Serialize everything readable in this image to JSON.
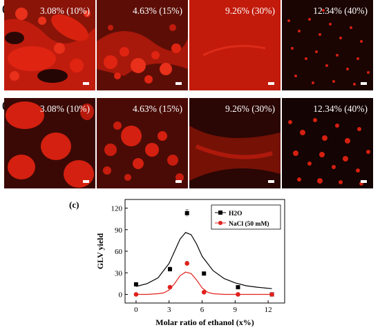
{
  "rows": [
    {
      "label": "(a)",
      "panels": [
        "3.08% (10%)",
        "4.63% (15%)",
        "9.26% (30%)",
        "12.34%  (40%)"
      ]
    },
    {
      "label": "(b)",
      "panels": [
        "3.08% (10%)",
        "4.63% (15%)",
        "9.26% (30%)",
        "12.34%  (40%)"
      ]
    }
  ],
  "colors": {
    "fluorescence": "#d42010",
    "background_dark": "#1a0503",
    "h2o_series": "#000000",
    "nacl_series": "#e0201c"
  },
  "chart_data": {
    "type": "scatter",
    "panel_label": "(c)",
    "xlabel": "Molar ratio of ethanol (x%)",
    "ylabel": "GLV yield",
    "xlim": [
      -1,
      13.5
    ],
    "ylim": [
      -12,
      132
    ],
    "xticks": [
      0,
      3,
      6,
      9,
      12
    ],
    "yticks": [
      0,
      30,
      60,
      90,
      120
    ],
    "legend_position": "top-right",
    "series": [
      {
        "name": "H2O",
        "marker": "square",
        "color": "#000000",
        "x": [
          0,
          3.08,
          4.63,
          6.17,
          9.26,
          12.34
        ],
        "y": [
          14,
          35,
          113,
          29,
          10,
          0
        ],
        "err": [
          1,
          3,
          5,
          1,
          1,
          0
        ]
      },
      {
        "name": "NaCl (50 mM)",
        "marker": "circle",
        "color": "#e0201c",
        "x": [
          0,
          3.08,
          4.63,
          6.17,
          9.26,
          12.34
        ],
        "y": [
          0,
          10,
          43,
          3,
          0,
          0
        ],
        "err": [
          0,
          1,
          3,
          0,
          0,
          0
        ]
      }
    ],
    "fits": [
      {
        "series": "H2O",
        "x": [
          0,
          1,
          2,
          3,
          3.5,
          4,
          4.5,
          5,
          5.5,
          6,
          7,
          8,
          9,
          10,
          11,
          12.34
        ],
        "y": [
          11,
          15,
          23,
          43,
          60,
          77,
          86,
          83,
          70,
          53,
          33,
          22,
          16,
          12,
          10,
          8
        ]
      },
      {
        "series": "NaCl (50 mM)",
        "x": [
          0,
          1,
          2,
          2.5,
          3,
          3.5,
          4,
          4.5,
          5,
          5.5,
          6,
          6.5,
          7,
          8,
          9,
          12.34
        ],
        "y": [
          0,
          0,
          1,
          2,
          6,
          15,
          26,
          31,
          29,
          20,
          9,
          3,
          1,
          0,
          0,
          0
        ]
      }
    ]
  }
}
